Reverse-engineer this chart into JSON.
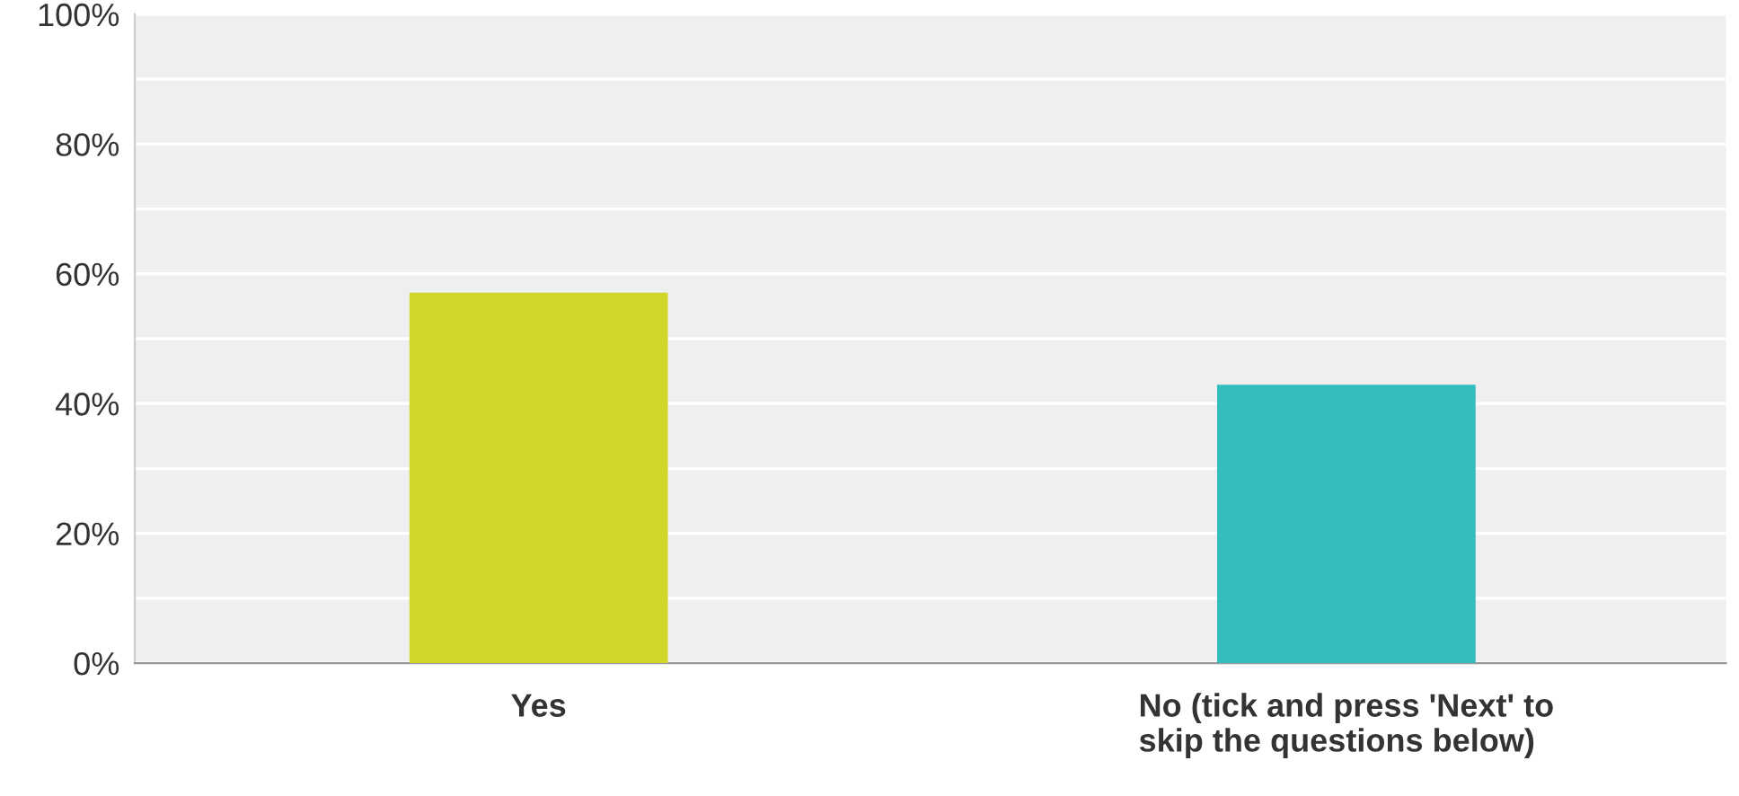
{
  "chart_data": {
    "type": "bar",
    "categories": [
      "Yes",
      "No (tick and press 'Next' to\nskip the questions below)"
    ],
    "values": [
      57.1,
      42.9
    ],
    "colors": [
      "#d0d62a",
      "#33bdbe"
    ],
    "ylim": [
      0,
      100
    ],
    "yticks": [
      {
        "value": 0,
        "label": "0%"
      },
      {
        "value": 10,
        "label": null
      },
      {
        "value": 20,
        "label": "20%"
      },
      {
        "value": 30,
        "label": null
      },
      {
        "value": 40,
        "label": "40%"
      },
      {
        "value": 50,
        "label": null
      },
      {
        "value": 60,
        "label": "60%"
      },
      {
        "value": 70,
        "label": null
      },
      {
        "value": 80,
        "label": "80%"
      },
      {
        "value": 90,
        "label": null
      },
      {
        "value": 100,
        "label": "100%"
      }
    ],
    "grid": "y",
    "legend": false
  }
}
